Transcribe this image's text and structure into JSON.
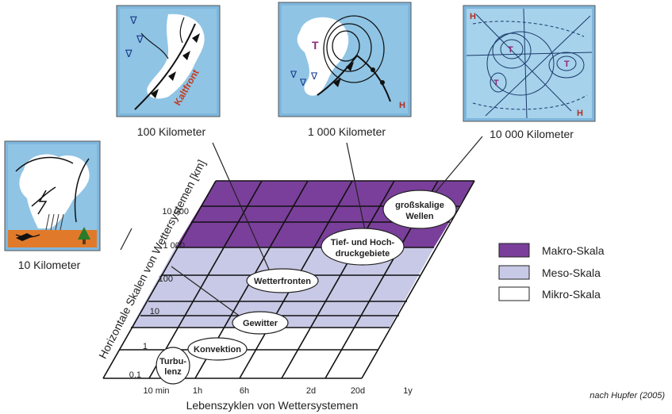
{
  "thumbnails": [
    {
      "caption": "100 Kilometer",
      "front_label": "Kaltfront"
    },
    {
      "caption": "1 000 Kilometer",
      "low_label": "T",
      "high_label": "H"
    },
    {
      "caption": "10 000 Kilometer",
      "low_labels": [
        "T",
        "T",
        "T"
      ],
      "high_labels": [
        "H",
        "H"
      ]
    },
    {
      "caption": "10 Kilometer"
    }
  ],
  "axes": {
    "y_label": "Horizontale Skalen von Wettersystemen [km]",
    "x_label": "Lebenszyklen von Wettersystemen",
    "y_ticks": [
      "10 000",
      "1 000",
      "100",
      "10",
      "1",
      "0.1"
    ],
    "x_ticks": [
      "10 min",
      "1h",
      "6h",
      "2d",
      "20d",
      "1y"
    ]
  },
  "phenomena": [
    {
      "lines": [
        "Turbu-",
        "lenz"
      ]
    },
    {
      "lines": [
        "Konvektion"
      ]
    },
    {
      "lines": [
        "Gewitter"
      ]
    },
    {
      "lines": [
        "Wetterfronten"
      ]
    },
    {
      "lines": [
        "Tief- und Hoch-",
        "druckgebiete"
      ]
    },
    {
      "lines": [
        "großskalige",
        "Wellen"
      ]
    }
  ],
  "legend": [
    {
      "label": "Makro-Skala",
      "color": "#7a3f9a"
    },
    {
      "label": "Meso-Skala",
      "color": "#c8c9e6"
    },
    {
      "label": "Mikro-Skala",
      "color": "#ffffff"
    }
  ],
  "credit": "nach Hupfer (2005)"
}
